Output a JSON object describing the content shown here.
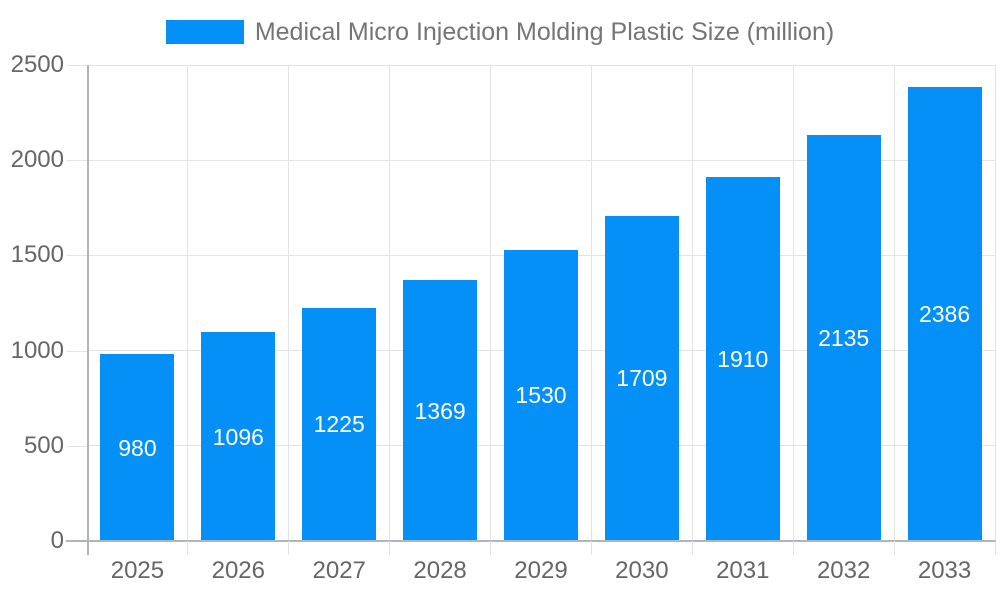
{
  "legend": {
    "label": "Medical Micro Injection Molding Plastic Size (million)"
  },
  "chart_data": {
    "type": "bar",
    "title": "Medical Micro Injection Molding Plastic Size (million)",
    "categories": [
      "2025",
      "2026",
      "2027",
      "2028",
      "2029",
      "2030",
      "2031",
      "2032",
      "2033"
    ],
    "values": [
      980,
      1096,
      1225,
      1369,
      1530,
      1709,
      1910,
      2135,
      2386
    ],
    "xlabel": "",
    "ylabel": "",
    "ylim": [
      0,
      2500
    ],
    "yticks": [
      0,
      500,
      1000,
      1500,
      2000,
      2500
    ],
    "grid": true,
    "legend_position": "top-center",
    "bar_labels_inside": true,
    "colors": {
      "bar": "#0590f8",
      "bar_label": "#ffffff",
      "title_text": "#757575",
      "axis_text": "#666666",
      "gridline": "#e3e3e3",
      "axis_line": "#b0b5ba"
    }
  }
}
